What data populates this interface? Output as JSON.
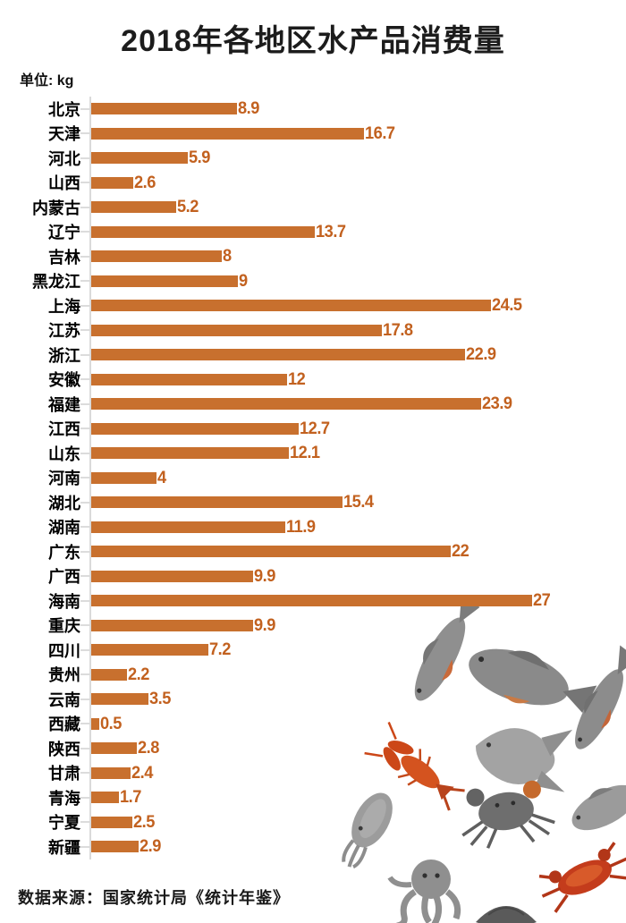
{
  "title": "2018年各地区水产品消费量",
  "unit_label": "单位: kg",
  "source": "数据来源：国家统计局《统计年鉴》",
  "colors": {
    "bar": "#C8702E",
    "value_label": "#C2611F",
    "axis_line": "#DADADA",
    "title_text": "#1C1C1C"
  },
  "chart_data": {
    "type": "bar",
    "orientation": "horizontal",
    "title": "2018年各地区水产品消费量",
    "unit": "kg",
    "xlabel": "",
    "ylabel": "",
    "xlim": [
      0,
      27
    ],
    "grid": false,
    "legend": false,
    "categories": [
      "北京",
      "天津",
      "河北",
      "山西",
      "内蒙古",
      "辽宁",
      "吉林",
      "黑龙江",
      "上海",
      "江苏",
      "浙江",
      "安徽",
      "福建",
      "江西",
      "山东",
      "河南",
      "湖北",
      "湖南",
      "广东",
      "广西",
      "海南",
      "重庆",
      "四川",
      "贵州",
      "云南",
      "西藏",
      "陕西",
      "甘肃",
      "青海",
      "宁夏",
      "新疆"
    ],
    "values": [
      8.9,
      16.7,
      5.9,
      2.6,
      5.2,
      13.7,
      8,
      9,
      24.5,
      17.8,
      22.9,
      12,
      23.9,
      12.7,
      12.1,
      4,
      15.4,
      11.9,
      22,
      9.9,
      27,
      9.9,
      7.2,
      2.2,
      3.5,
      0.5,
      2.8,
      2.4,
      1.7,
      2.5,
      2.9
    ]
  },
  "illustration": {
    "description": "seafood collage",
    "items": [
      "fish-icon",
      "fish-icon",
      "pomfret-fish-icon",
      "fish-icon",
      "fish-icon",
      "crayfish-icon",
      "crab-icon",
      "cuttlefish-icon",
      "octopus-icon",
      "red-crab-icon",
      "shell-icon"
    ]
  }
}
